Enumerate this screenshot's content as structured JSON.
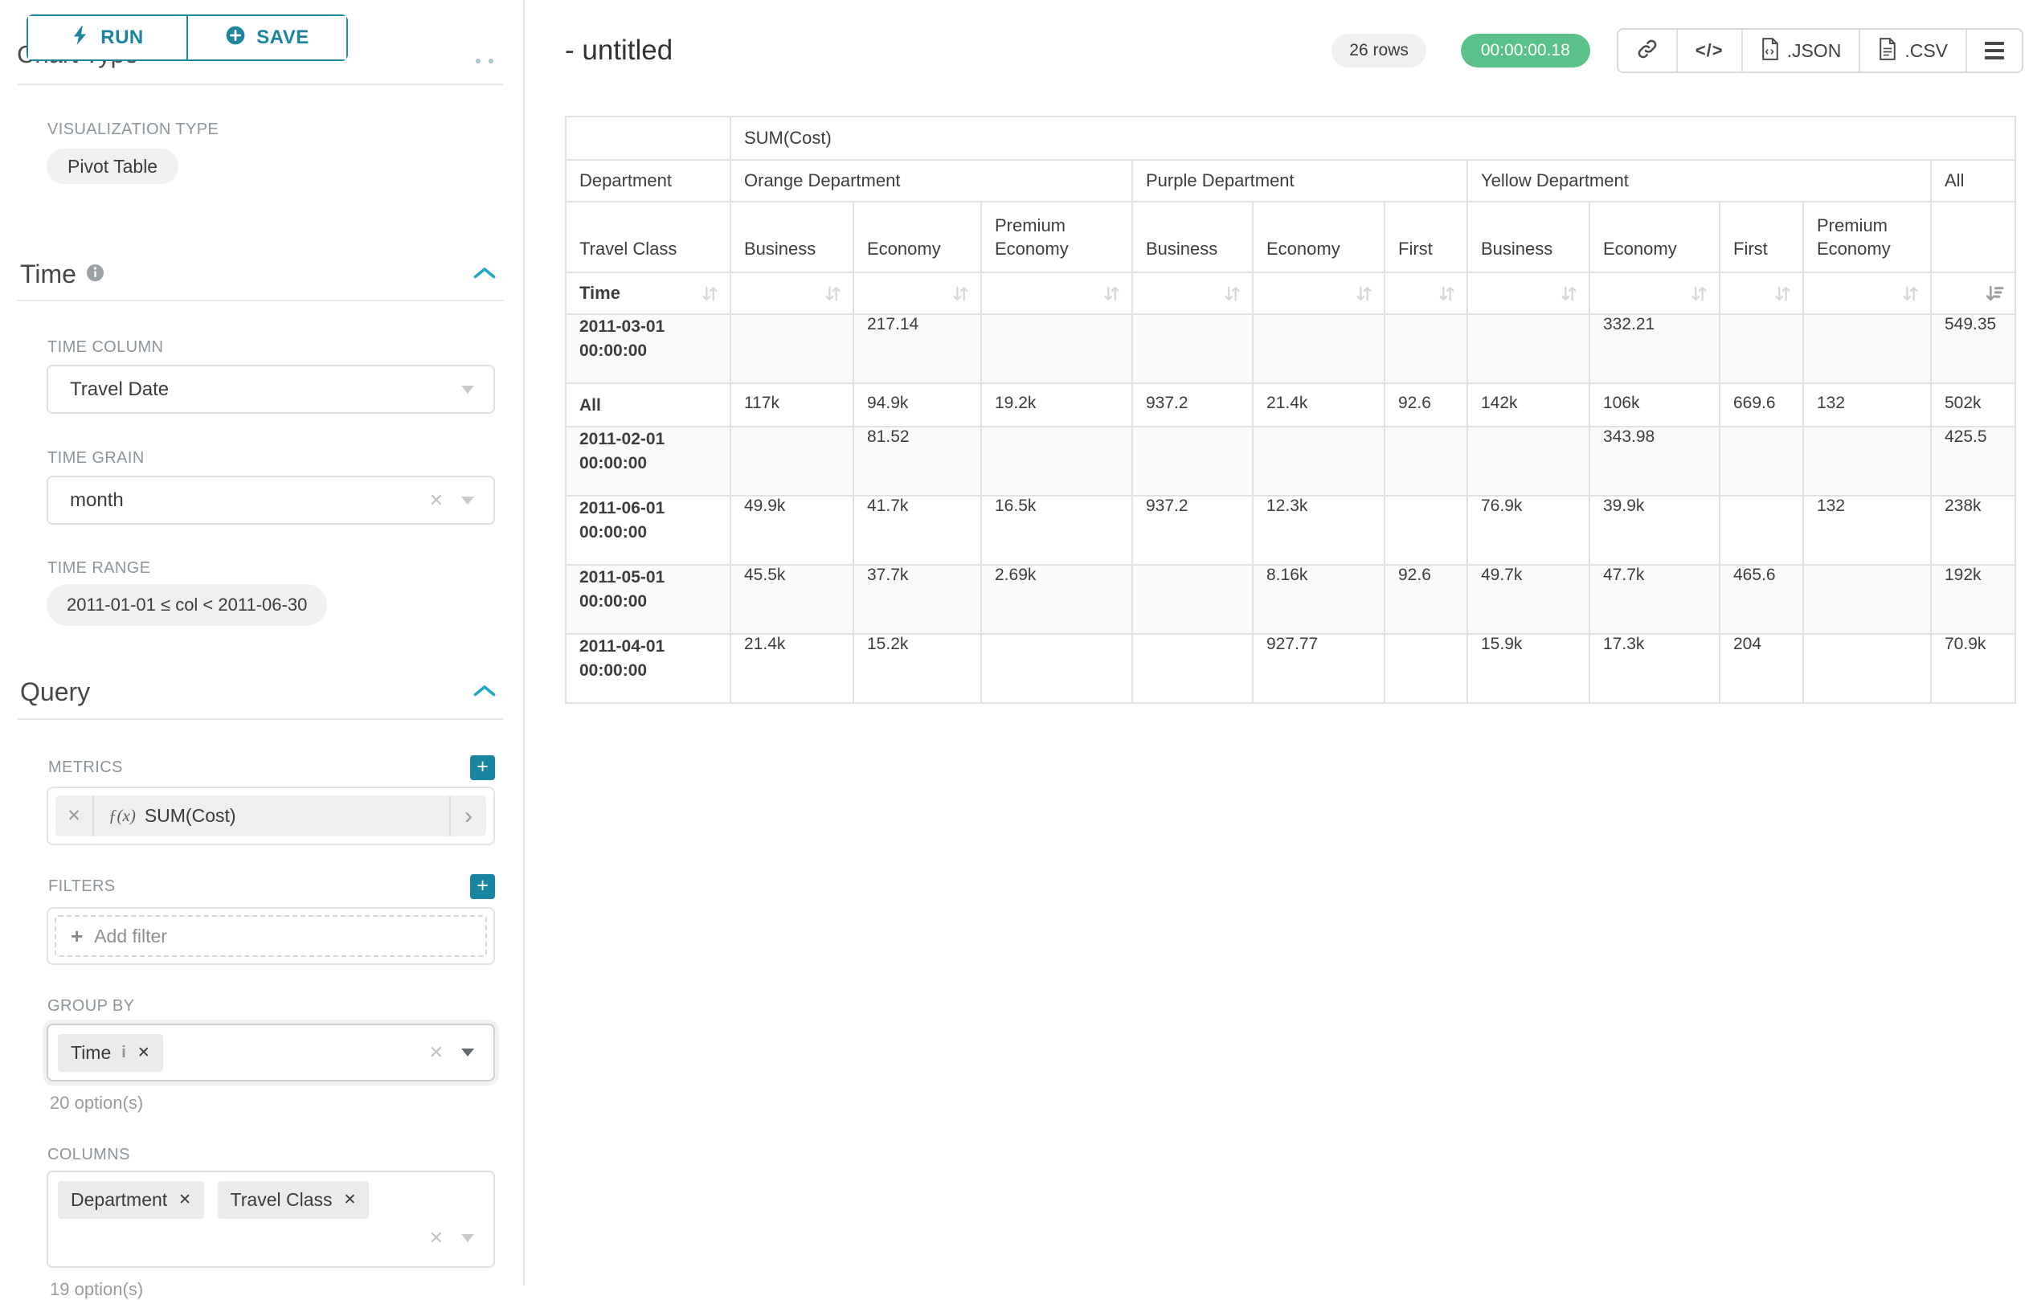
{
  "colors": {
    "primary_teal": "#1985a0",
    "accent_blue": "#20a7c9",
    "success_green": "#5ac189",
    "label_gray": "#8b959b",
    "tag_gray": "#ebebeb"
  },
  "sidebar": {
    "run_label": "RUN",
    "save_label": "SAVE",
    "clipped_heading": "Chart Type",
    "viz_type_label": "VISUALIZATION TYPE",
    "viz_type_value": "Pivot Table",
    "time": {
      "title": "Time",
      "time_column_label": "TIME COLUMN",
      "time_column_value": "Travel Date",
      "time_grain_label": "TIME GRAIN",
      "time_grain_value": "month",
      "time_range_label": "TIME RANGE",
      "time_range_value": "2011-01-01 ≤ col < 2011-06-30"
    },
    "query": {
      "title": "Query",
      "metrics_label": "METRICS",
      "metric_fx": "ƒ(x)",
      "metric_value": "SUM(Cost)",
      "filters_label": "FILTERS",
      "add_filter_label": "Add filter",
      "group_by_label": "GROUP BY",
      "group_by_tags": [
        "Time"
      ],
      "group_by_hint": "20 option(s)",
      "columns_label": "COLUMNS",
      "columns_tags": [
        "Department",
        "Travel Class"
      ],
      "columns_hint": "19 option(s)"
    }
  },
  "header": {
    "title": "- untitled",
    "row_count_badge": "26 rows",
    "timer_badge": "00:00:00.18",
    "export_json_label": ".JSON",
    "export_csv_label": ".CSV",
    "icons": [
      "link-icon",
      "code-icon",
      "json-file-icon",
      "csv-file-icon",
      "menu-icon"
    ]
  },
  "chart_data": {
    "type": "table",
    "title": "SUM(Cost)",
    "row_dimension": "Time",
    "column_dimensions": [
      "Department",
      "Travel Class"
    ],
    "column_groups": [
      {
        "label": "Orange Department",
        "cols": [
          "Business",
          "Economy",
          "Premium Economy"
        ]
      },
      {
        "label": "Purple Department",
        "cols": [
          "Business",
          "Economy",
          "First"
        ]
      },
      {
        "label": "Yellow Department",
        "cols": [
          "Business",
          "Economy",
          "First",
          "Premium Economy"
        ]
      },
      {
        "label": "All",
        "cols": [
          ""
        ]
      }
    ],
    "corner_labels": {
      "metric": "SUM(Cost)",
      "dept": "Department",
      "travel_class": "Travel Class",
      "time": "Time"
    },
    "sorted_column": "All",
    "sort_direction": "desc",
    "rows": [
      {
        "label": "2011-03-01 00:00:00",
        "values": [
          "",
          "217.14",
          "",
          "",
          "",
          "",
          "",
          "332.21",
          "",
          "",
          "549.35"
        ]
      },
      {
        "label": "All",
        "values": [
          "117k",
          "94.9k",
          "19.2k",
          "937.2",
          "21.4k",
          "92.6",
          "142k",
          "106k",
          "669.6",
          "132",
          "502k"
        ]
      },
      {
        "label": "2011-02-01 00:00:00",
        "values": [
          "",
          "81.52",
          "",
          "",
          "",
          "",
          "",
          "343.98",
          "",
          "",
          "425.5"
        ]
      },
      {
        "label": "2011-06-01 00:00:00",
        "values": [
          "49.9k",
          "41.7k",
          "16.5k",
          "937.2",
          "12.3k",
          "",
          "76.9k",
          "39.9k",
          "",
          "132",
          "238k"
        ]
      },
      {
        "label": "2011-05-01 00:00:00",
        "values": [
          "45.5k",
          "37.7k",
          "2.69k",
          "",
          "8.16k",
          "92.6",
          "49.7k",
          "47.7k",
          "465.6",
          "",
          "192k"
        ]
      },
      {
        "label": "2011-04-01 00:00:00",
        "values": [
          "21.4k",
          "15.2k",
          "",
          "",
          "927.77",
          "",
          "15.9k",
          "17.3k",
          "204",
          "",
          "70.9k"
        ]
      }
    ]
  }
}
